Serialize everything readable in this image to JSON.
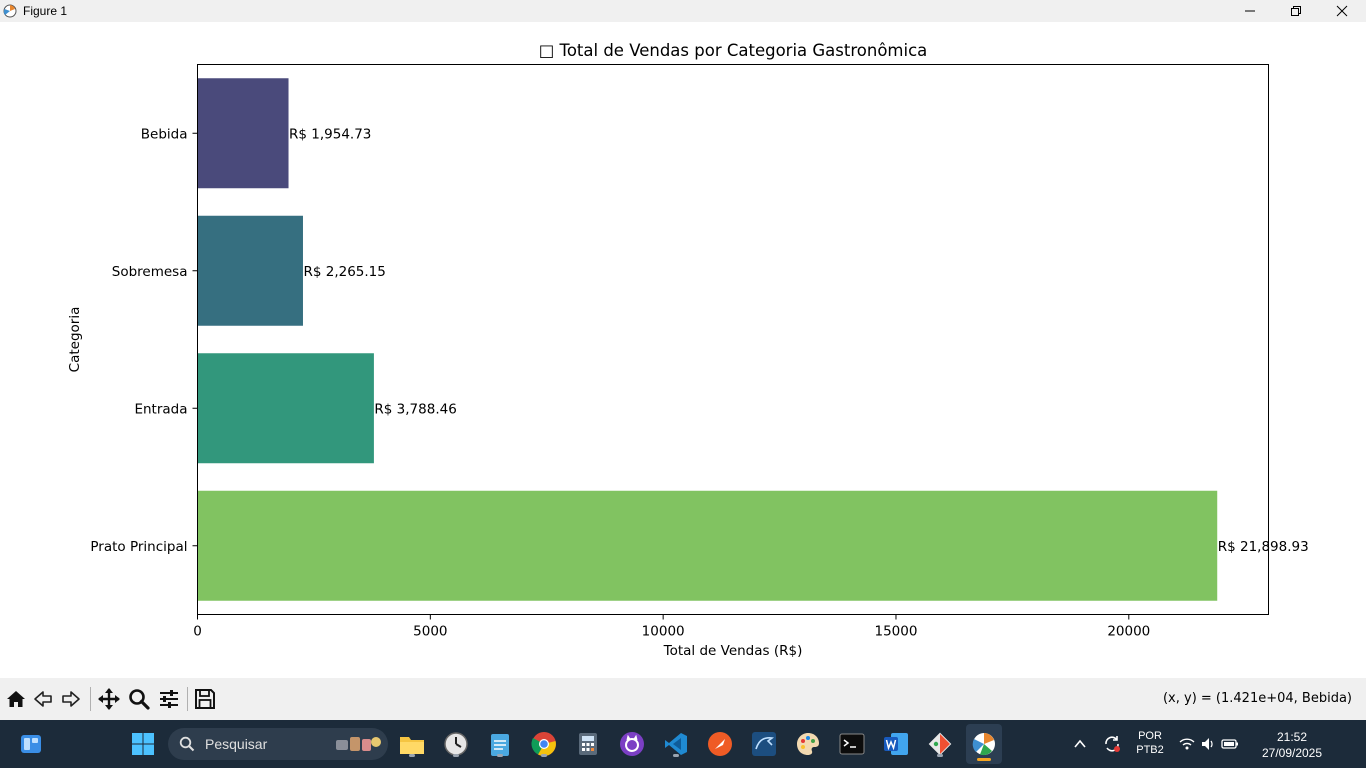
{
  "window": {
    "title": "Figure 1"
  },
  "colors": {
    "bars": [
      "#81c361",
      "#32977c",
      "#366f80",
      "#4a4a7b"
    ],
    "titlebar_bg": "#f0f0f0",
    "taskbar_bg": "#1c2b3a"
  },
  "chart_data": {
    "type": "bar",
    "orientation": "horizontal",
    "title": "□ Total de Vendas por Categoria Gastronômica",
    "xlabel": "Total de Vendas (R$)",
    "ylabel": "Categoria",
    "categories": [
      "Prato Principal",
      "Entrada",
      "Sobremesa",
      "Bebida"
    ],
    "values": [
      21898.93,
      3788.46,
      2265.15,
      1954.73
    ],
    "data_labels": [
      "R$ 21,898.93",
      "R$ 3,788.46",
      "R$ 2,265.15",
      "R$ 1,954.73"
    ],
    "xlim": [
      0,
      23000
    ],
    "xticks": [
      0,
      5000,
      10000,
      15000,
      20000
    ],
    "xtick_labels": [
      "0",
      "5000",
      "10000",
      "15000",
      "20000"
    ],
    "grid": false,
    "legend": "none"
  },
  "toolbar": {
    "items": [
      {
        "icon": "home-icon"
      },
      {
        "icon": "back-arrow-icon"
      },
      {
        "icon": "forward-arrow-icon"
      },
      {
        "icon": "pan-icon"
      },
      {
        "icon": "zoom-icon"
      },
      {
        "icon": "configure-subplots-icon"
      },
      {
        "icon": "save-icon"
      }
    ],
    "coords_readout": "(x, y) = (1.421e+04, Bebida)"
  },
  "taskbar": {
    "search_placeholder": "Pesquisar",
    "lang_line1": "POR",
    "lang_line2": "PTB2",
    "time": "21:52",
    "date": "27/09/2025"
  }
}
